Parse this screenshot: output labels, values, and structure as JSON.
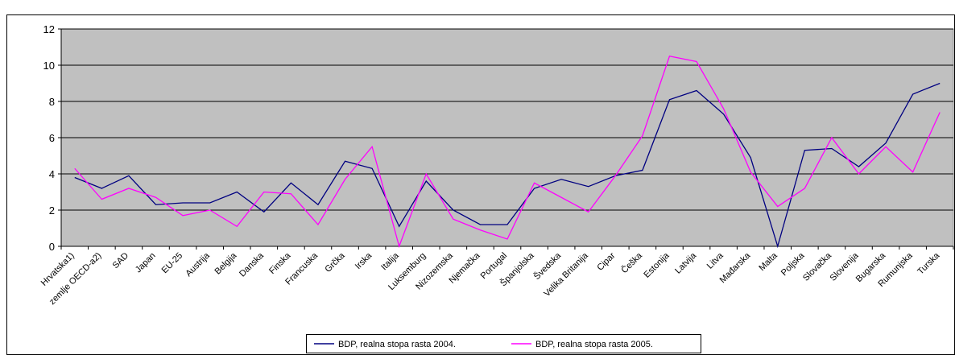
{
  "chart_data": {
    "type": "line",
    "categories": [
      "Hrvatska1)",
      "zemlje OECD-a2)",
      "SAD",
      "Japan",
      "EU-25",
      "Austrija",
      "Belgija",
      "Danska",
      "Finska",
      "Francuska",
      "Grčka",
      "Irska",
      "Italija",
      "Luksemburg",
      "Nizozemska",
      "Njemačka",
      "Portugal",
      "Španjolska",
      "Švedska",
      "Velika Britanija",
      "Cipar",
      "Češka",
      "Estonija",
      "Latvija",
      "Litva",
      "Mađarska",
      "Malta",
      "Poljska",
      "Slovačka",
      "Slovenija",
      "Bugarska",
      "Rumunjska",
      "Turska"
    ],
    "series": [
      {
        "name": "BDP, realna stopa rasta 2004.",
        "color": "#000080",
        "values": [
          3.8,
          3.2,
          3.9,
          2.3,
          2.4,
          2.4,
          3.0,
          1.9,
          3.5,
          2.3,
          4.7,
          4.3,
          1.1,
          3.6,
          2.0,
          1.2,
          1.2,
          3.2,
          3.7,
          3.3,
          3.9,
          4.2,
          8.1,
          8.6,
          7.3,
          4.9,
          0.0,
          5.3,
          5.4,
          4.4,
          5.7,
          8.4,
          9.0
        ]
      },
      {
        "name": "BDP, realna stopa rasta 2005.",
        "color": "#ff00ff",
        "values": [
          4.3,
          2.6,
          3.2,
          2.7,
          1.7,
          2.0,
          1.1,
          3.0,
          2.9,
          1.2,
          3.7,
          5.5,
          0.0,
          4.0,
          1.5,
          0.9,
          0.4,
          3.5,
          2.7,
          1.9,
          3.9,
          6.1,
          10.5,
          10.2,
          7.6,
          4.1,
          2.2,
          3.2,
          6.0,
          4.0,
          5.5,
          4.1,
          7.4
        ]
      }
    ],
    "ylim": [
      0,
      12
    ],
    "yticks": [
      0,
      2,
      4,
      6,
      8,
      10,
      12
    ],
    "grid": true,
    "plot_background": "#c0c0c0",
    "legend": "bottom"
  }
}
